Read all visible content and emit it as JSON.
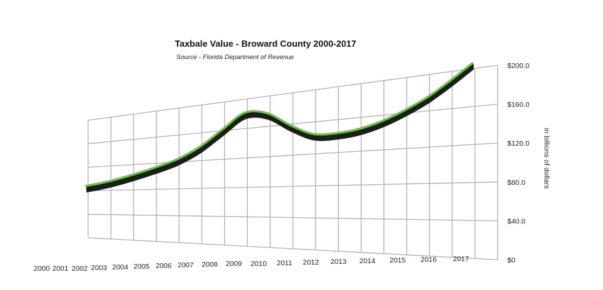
{
  "chart_data": {
    "type": "line",
    "title": "Taxbale Value - Broward County 2000-2017",
    "subtitle": "Source - Florida Department of Revenue",
    "ylabel": "in billions of dollars",
    "xlabel": "",
    "categories": [
      "2000",
      "2001",
      "2002",
      "2003",
      "2004",
      "2005",
      "2006",
      "2007",
      "2008",
      "2009",
      "2010",
      "2011",
      "2012",
      "2013",
      "2014",
      "2015",
      "2016",
      "2017"
    ],
    "y_ticks": [
      "$0",
      "$40.0",
      "$80.0",
      "$120.0",
      "$160.0",
      "$200.0"
    ],
    "ylim": [
      0,
      200
    ],
    "grid": true,
    "legend": "none",
    "series": [
      {
        "values": [
          55,
          62,
          71,
          81,
          92,
          108,
          130,
          150,
          146,
          128,
          115,
          114,
          117,
          124,
          134,
          146,
          161,
          177
        ],
        "color": "#6fbf4a",
        "shadow_color": "#1d1d1d"
      }
    ]
  }
}
